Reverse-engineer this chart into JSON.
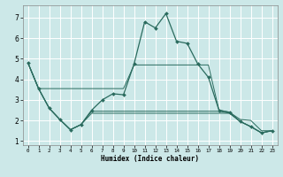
{
  "xlabel": "Humidex (Indice chaleur)",
  "background_color": "#cce8e8",
  "grid_color": "#ffffff",
  "line_color": "#2a6b5e",
  "xlim": [
    -0.5,
    23.5
  ],
  "ylim": [
    0.8,
    7.6
  ],
  "yticks": [
    1,
    2,
    3,
    4,
    5,
    6,
    7
  ],
  "xticks": [
    0,
    1,
    2,
    3,
    4,
    5,
    6,
    7,
    8,
    9,
    10,
    11,
    12,
    13,
    14,
    15,
    16,
    17,
    18,
    19,
    20,
    21,
    22,
    23
  ],
  "line_main_x": [
    0,
    1,
    2,
    3,
    4,
    5,
    6,
    7,
    8,
    9,
    10,
    11,
    12,
    13,
    14,
    15,
    16,
    17,
    18,
    19,
    20,
    21,
    22,
    23
  ],
  "line_main_y": [
    4.8,
    3.55,
    2.6,
    2.05,
    1.55,
    1.8,
    2.5,
    3.0,
    3.3,
    3.25,
    4.75,
    6.8,
    6.5,
    7.2,
    5.85,
    5.75,
    4.75,
    4.1,
    2.5,
    2.4,
    1.95,
    1.7,
    1.4,
    1.5
  ],
  "line2_x": [
    0,
    1,
    2,
    3,
    4,
    5,
    6,
    7,
    8,
    9,
    10,
    11,
    12,
    13,
    14,
    15,
    16,
    17,
    18,
    19,
    20,
    21,
    22,
    23
  ],
  "line2_y": [
    4.8,
    3.55,
    2.6,
    2.05,
    1.55,
    1.8,
    2.45,
    2.45,
    2.45,
    2.45,
    2.45,
    2.45,
    2.45,
    2.45,
    2.45,
    2.45,
    2.45,
    2.45,
    2.45,
    2.35,
    1.95,
    1.7,
    1.4,
    1.5
  ],
  "line3_x": [
    0,
    1,
    2,
    3,
    4,
    5,
    6,
    7,
    8,
    9,
    10,
    11,
    12,
    13,
    14,
    15,
    16,
    17,
    18,
    19,
    20,
    21,
    22,
    23
  ],
  "line3_y": [
    4.8,
    3.55,
    2.6,
    2.05,
    1.55,
    1.8,
    2.35,
    2.35,
    2.35,
    2.35,
    2.35,
    2.35,
    2.35,
    2.35,
    2.35,
    2.35,
    2.35,
    2.35,
    2.35,
    2.35,
    1.95,
    1.7,
    1.4,
    1.5
  ],
  "line4_x": [
    0,
    1,
    2,
    3,
    4,
    5,
    6,
    7,
    8,
    9,
    10,
    11,
    12,
    13,
    14,
    15,
    16,
    17,
    18,
    19,
    20,
    21,
    22,
    23
  ],
  "line4_y": [
    4.8,
    3.55,
    3.55,
    3.55,
    3.55,
    3.55,
    3.55,
    3.55,
    3.55,
    3.55,
    4.7,
    4.7,
    4.7,
    4.7,
    4.7,
    4.7,
    4.7,
    4.7,
    2.5,
    2.4,
    2.05,
    2.0,
    1.5,
    1.5
  ]
}
